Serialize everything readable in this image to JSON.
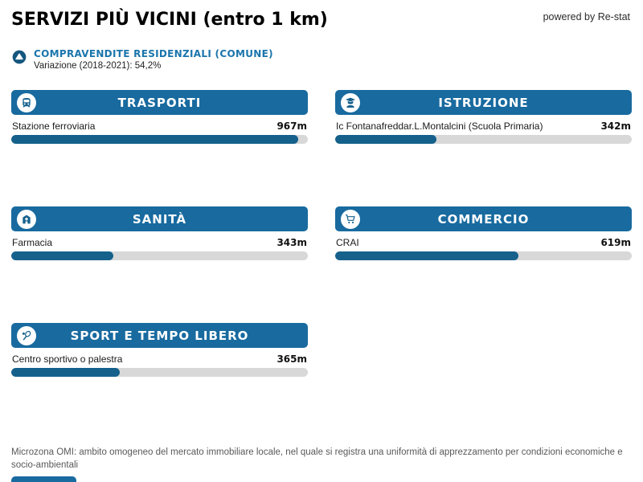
{
  "header": {
    "title": "SERVIZI PIÙ VICINI (entro 1 km)",
    "powered_by": "powered by Re-stat"
  },
  "subheader": {
    "icon": "trend-up-circle-icon",
    "label": "COMPRAVENDITE RESIDENZIALI (COMUNE)",
    "detail": "Variazione (2018-2021): 54,2%"
  },
  "colors": {
    "header_blue": "#186a9f",
    "bar_fill_blue": "#15618c",
    "bar_track_gray": "#d8d8d8",
    "accent_text_blue": "#1a75ac"
  },
  "cards": [
    {
      "id": "trasporti",
      "title": "TRASPORTI",
      "icon": "train-icon",
      "item": "Stazione ferroviaria",
      "value": "967m",
      "distance_m": 967,
      "fill_pct": 96.7
    },
    {
      "id": "istruzione",
      "title": "ISTRUZIONE",
      "icon": "graduate-icon",
      "item": "Ic Fontanafreddar.L.Montalcini (Scuola Primaria)",
      "value": "342m",
      "distance_m": 342,
      "fill_pct": 34.2
    },
    {
      "id": "sanita",
      "title": "SANITÀ",
      "icon": "hospital-icon",
      "item": "Farmacia",
      "value": "343m",
      "distance_m": 343,
      "fill_pct": 34.3
    },
    {
      "id": "commercio",
      "title": "COMMERCIO",
      "icon": "cart-icon",
      "item": "CRAI",
      "value": "619m",
      "distance_m": 619,
      "fill_pct": 61.9
    },
    {
      "id": "sport",
      "title": "SPORT E TEMPO LIBERO",
      "icon": "tennis-racket-icon",
      "item": "Centro sportivo o palestra",
      "value": "365m",
      "distance_m": 365,
      "fill_pct": 36.5
    }
  ],
  "chart_data": {
    "type": "bar",
    "orientation": "horizontal",
    "title": "SERVIZI PIÙ VICINI (entro 1 km)",
    "categories": [
      "TRASPORTI",
      "ISTRUZIONE",
      "SANITÀ",
      "COMMERCIO",
      "SPORT E TEMPO LIBERO"
    ],
    "bar_labels": [
      "Stazione ferroviaria",
      "Ic Fontanafreddar.L.Montalcini (Scuola Primaria)",
      "Farmacia",
      "CRAI",
      "Centro sportivo o palestra"
    ],
    "series": [
      {
        "name": "distanza",
        "values": [
          967,
          342,
          343,
          619,
          365
        ]
      }
    ],
    "unit": "m",
    "xlim": [
      0,
      1000
    ],
    "grid": false,
    "legend": false
  },
  "footer": {
    "note": "Microzona OMI: ambito omogeneo del mercato immobiliare locale, nel quale si registra una uniformità di apprezzamento per condizioni economiche e socio-ambientali"
  }
}
